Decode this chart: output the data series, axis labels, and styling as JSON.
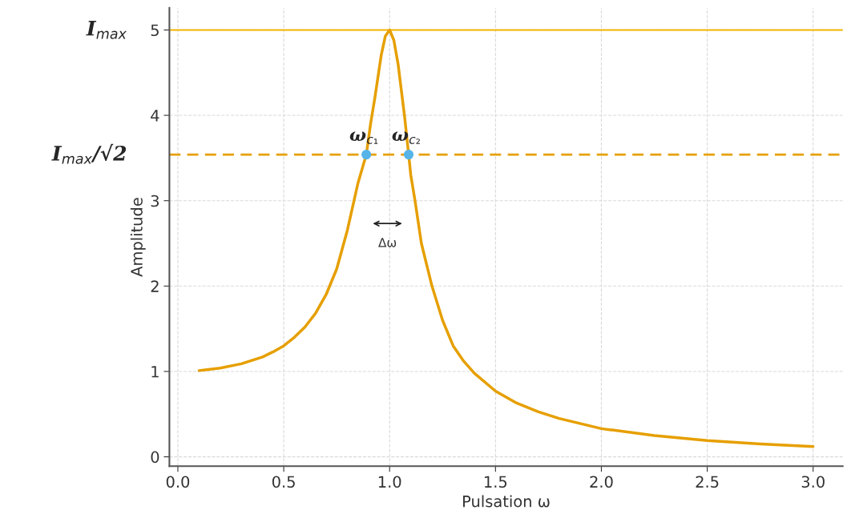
{
  "chart_data": {
    "type": "line",
    "xlabel": "Pulsation ω",
    "ylabel": "Amplitude",
    "xlim": [
      -0.04,
      3.14
    ],
    "ylim": [
      -0.11,
      5.26
    ],
    "xticks": [
      {
        "value": 0,
        "label": "0.0"
      },
      0.5,
      {
        "value": 1,
        "label": "1.0"
      },
      1.5,
      {
        "value": 2,
        "label": "2.0"
      },
      2.5,
      {
        "value": 3,
        "label": "3.0"
      }
    ],
    "yticks": [
      0,
      1,
      2,
      3,
      4,
      5
    ],
    "grid": true,
    "series": [
      {
        "color": "#e69f00",
        "x": [
          0.1,
          0.2,
          0.3,
          0.35,
          0.4,
          0.45,
          0.5,
          0.55,
          0.6,
          0.65,
          0.7,
          0.75,
          0.8,
          0.85,
          0.89,
          0.91,
          0.93,
          0.96,
          0.98,
          1.0,
          1.02,
          1.04,
          1.07,
          1.09,
          1.1,
          1.12,
          1.15,
          1.2,
          1.25,
          1.3,
          1.35,
          1.4,
          1.5,
          1.6,
          1.7,
          1.8,
          2.0,
          2.25,
          2.5,
          2.75,
          3.0
        ],
        "values": [
          1.01,
          1.04,
          1.09,
          1.13,
          1.17,
          1.23,
          1.3,
          1.4,
          1.52,
          1.68,
          1.9,
          2.2,
          2.65,
          3.2,
          3.54,
          3.9,
          4.2,
          4.7,
          4.93,
          5.0,
          4.88,
          4.6,
          4.0,
          3.54,
          3.3,
          3.0,
          2.5,
          2.0,
          1.6,
          1.3,
          1.12,
          0.98,
          0.77,
          0.63,
          0.53,
          0.45,
          0.33,
          0.25,
          0.19,
          0.15,
          0.12
        ]
      },
      {
        "type": "scatter",
        "color": "#56b4e9",
        "marker": "circle",
        "x": [
          0.89,
          1.09
        ],
        "values": [
          3.54,
          3.54
        ],
        "value_labels": [
          "ω$_{c₁}$",
          "ω$_{c₂}$"
        ]
      }
    ],
    "ref_lines": [
      {
        "axis": "y",
        "value": 5,
        "label": "I$_{max}$",
        "color": "#f5b400",
        "line_style": "solid"
      },
      {
        "axis": "y",
        "value": 3.54,
        "label": "I$_{max}$/√2",
        "color": "#e6a000",
        "line_style": "dashed"
      }
    ],
    "annotations": [
      "Δω"
    ]
  }
}
